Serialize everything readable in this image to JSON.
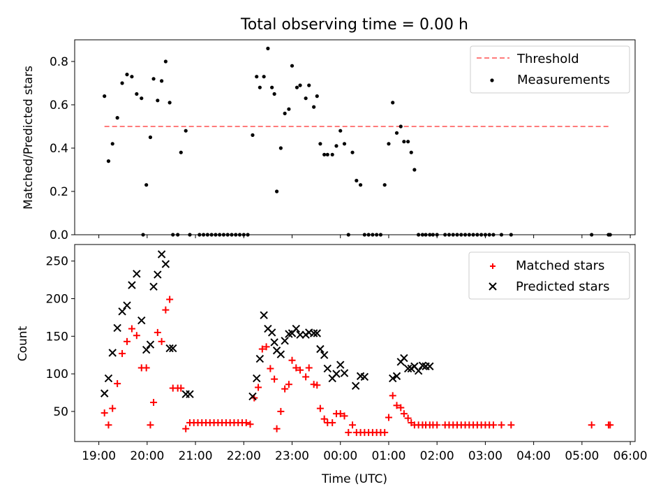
{
  "chart_data": [
    {
      "type": "scatter",
      "title": "Total observing time = 0.00 h",
      "ylabel": "Matched/Predicted stars",
      "ylim": [
        0,
        0.9
      ],
      "yticks": [
        "0.0",
        "0.2",
        "0.4",
        "0.6",
        "0.8"
      ],
      "xlim_hours": [
        18.5,
        30.1
      ],
      "threshold": {
        "name": "Threshold",
        "value": 0.5,
        "x_range": [
          "19:07",
          "29:35"
        ],
        "color": "#ff7b7b"
      },
      "legend": {
        "position": "top-right",
        "entries": [
          "Threshold",
          "Measurements"
        ]
      },
      "series": [
        {
          "name": "Measurements",
          "color": "#000000",
          "x": [
            "19:07",
            "19:12",
            "19:17",
            "19:23",
            "19:29",
            "19:35",
            "19:41",
            "19:47",
            "19:53",
            "19:55",
            "19:59",
            "20:04",
            "20:08",
            "20:13",
            "20:18",
            "20:23",
            "20:28",
            "20:32",
            "20:38",
            "20:42",
            "20:48",
            "20:53",
            "21:05",
            "21:10",
            "21:15",
            "21:20",
            "21:25",
            "21:30",
            "21:35",
            "21:40",
            "21:45",
            "21:50",
            "21:55",
            "22:00",
            "22:05",
            "22:11",
            "22:16",
            "22:20",
            "22:25",
            "22:30",
            "22:35",
            "22:38",
            "22:41",
            "22:46",
            "22:51",
            "22:56",
            "23:00",
            "23:06",
            "23:10",
            "23:17",
            "23:21",
            "23:27",
            "23:31",
            "23:35",
            "23:40",
            "23:44",
            "23:50",
            "23:55",
            "24:00",
            "24:05",
            "24:10",
            "24:15",
            "24:20",
            "24:25",
            "24:30",
            "24:35",
            "24:40",
            "24:45",
            "24:50",
            "24:55",
            "25:00",
            "25:05",
            "25:10",
            "25:15",
            "25:19",
            "25:24",
            "25:28",
            "25:32",
            "25:37",
            "25:42",
            "25:46",
            "25:51",
            "25:55",
            "26:00",
            "26:10",
            "26:15",
            "26:20",
            "26:25",
            "26:30",
            "26:35",
            "26:40",
            "26:45",
            "26:50",
            "26:55",
            "27:00",
            "27:05",
            "27:10",
            "27:20",
            "27:32",
            "29:12",
            "29:33",
            "29:35"
          ],
          "y": [
            0.64,
            0.34,
            0.42,
            0.54,
            0.7,
            0.74,
            0.73,
            0.65,
            0.63,
            0.0,
            0.23,
            0.45,
            0.72,
            0.62,
            0.71,
            0.8,
            0.61,
            0.0,
            0.0,
            0.38,
            0.48,
            0.0,
            0.0,
            0.0,
            0.0,
            0.0,
            0.0,
            0.0,
            0.0,
            0.0,
            0.0,
            0.0,
            0.0,
            0.0,
            0.0,
            0.46,
            0.73,
            0.68,
            0.73,
            0.86,
            0.68,
            0.65,
            0.2,
            0.4,
            0.56,
            0.58,
            0.78,
            0.68,
            0.69,
            0.63,
            0.69,
            0.59,
            0.64,
            0.42,
            0.37,
            0.37,
            0.37,
            0.41,
            0.48,
            0.42,
            0.0,
            0.38,
            0.25,
            0.23,
            0.0,
            0.0,
            0.0,
            0.0,
            0.0,
            0.23,
            0.42,
            0.61,
            0.47,
            0.5,
            0.43,
            0.43,
            0.38,
            0.3,
            0.0,
            0.0,
            0.0,
            0.0,
            0.0,
            0.0,
            0.0,
            0.0,
            0.0,
            0.0,
            0.0,
            0.0,
            0.0,
            0.0,
            0.0,
            0.0,
            0.0,
            0.0,
            0.0,
            0.0,
            0.0,
            0.0,
            0.0,
            0.0
          ]
        }
      ]
    },
    {
      "type": "scatter",
      "xlabel": "Time (UTC)",
      "ylabel": "Count",
      "ylim": [
        10,
        272
      ],
      "yticks": [
        "50",
        "100",
        "150",
        "200",
        "250"
      ],
      "xticks": [
        "19:00",
        "20:00",
        "21:00",
        "22:00",
        "23:00",
        "00:00",
        "01:00",
        "02:00",
        "03:00",
        "04:00",
        "05:00",
        "06:00"
      ],
      "legend": {
        "position": "top-right",
        "entries": [
          "Matched stars",
          "Predicted stars"
        ]
      },
      "series": [
        {
          "name": "Matched stars",
          "marker": "plus",
          "color": "#ff0000",
          "x": [
            "19:07",
            "19:12",
            "19:17",
            "19:23",
            "19:29",
            "19:35",
            "19:41",
            "19:47",
            "19:53",
            "19:59",
            "20:04",
            "20:08",
            "20:13",
            "20:18",
            "20:23",
            "20:28",
            "20:32",
            "20:38",
            "20:42",
            "20:48",
            "20:53",
            "20:58",
            "21:03",
            "21:08",
            "21:13",
            "21:18",
            "21:23",
            "21:28",
            "21:33",
            "21:38",
            "21:43",
            "21:48",
            "21:53",
            "21:58",
            "22:03",
            "22:08",
            "22:13",
            "22:18",
            "22:23",
            "22:28",
            "22:33",
            "22:38",
            "22:41",
            "22:46",
            "22:51",
            "22:56",
            "23:00",
            "23:05",
            "23:10",
            "23:17",
            "23:21",
            "23:27",
            "23:31",
            "23:35",
            "23:40",
            "23:44",
            "23:50",
            "23:55",
            "24:00",
            "24:05",
            "24:10",
            "24:15",
            "24:20",
            "24:25",
            "24:30",
            "24:35",
            "24:40",
            "24:45",
            "24:50",
            "24:55",
            "25:00",
            "25:05",
            "25:10",
            "25:15",
            "25:19",
            "25:24",
            "25:28",
            "25:32",
            "25:37",
            "25:42",
            "25:46",
            "25:51",
            "25:55",
            "26:00",
            "26:10",
            "26:15",
            "26:20",
            "26:25",
            "26:30",
            "26:35",
            "26:40",
            "26:45",
            "26:50",
            "26:55",
            "27:00",
            "27:05",
            "27:10",
            "27:20",
            "27:32",
            "29:12",
            "29:33",
            "29:35"
          ],
          "y": [
            48,
            32,
            54,
            87,
            127,
            143,
            160,
            151,
            108,
            108,
            32,
            62,
            155,
            143,
            185,
            199,
            81,
            81,
            81,
            27,
            35,
            35,
            35,
            35,
            35,
            35,
            35,
            35,
            35,
            35,
            35,
            35,
            35,
            35,
            35,
            33,
            68,
            82,
            133,
            136,
            107,
            93,
            27,
            50,
            80,
            86,
            118,
            108,
            105,
            96,
            108,
            86,
            85,
            54,
            40,
            35,
            35,
            47,
            47,
            44,
            22,
            32,
            22,
            22,
            22,
            22,
            22,
            22,
            22,
            22,
            42,
            71,
            58,
            55,
            47,
            41,
            35,
            32,
            32,
            32,
            32,
            32,
            32,
            32,
            32,
            32,
            32,
            32,
            32,
            32,
            32,
            32,
            32,
            32,
            32,
            32,
            32,
            32,
            32,
            32,
            32,
            32
          ]
        },
        {
          "name": "Predicted stars",
          "marker": "x",
          "color": "#000000",
          "x": [
            "19:07",
            "19:12",
            "19:17",
            "19:23",
            "19:29",
            "19:35",
            "19:41",
            "19:47",
            "19:53",
            "19:59",
            "20:04",
            "20:08",
            "20:13",
            "20:18",
            "20:23",
            "20:28",
            "20:32",
            "20:48",
            "20:53",
            "22:11",
            "22:16",
            "22:20",
            "22:25",
            "22:30",
            "22:35",
            "22:38",
            "22:41",
            "22:46",
            "22:51",
            "22:56",
            "23:00",
            "23:05",
            "23:10",
            "23:17",
            "23:21",
            "23:27",
            "23:31",
            "23:35",
            "23:40",
            "23:44",
            "23:50",
            "23:55",
            "24:00",
            "24:05",
            "24:19",
            "24:25",
            "24:30",
            "25:05",
            "25:10",
            "25:15",
            "25:19",
            "25:24",
            "25:28",
            "25:32",
            "25:37",
            "25:42",
            "25:46",
            "25:51"
          ],
          "y": [
            74,
            94,
            128,
            161,
            183,
            191,
            218,
            233,
            171,
            132,
            139,
            216,
            232,
            259,
            246,
            134,
            134,
            73,
            73,
            70,
            94,
            120,
            178,
            160,
            155,
            142,
            131,
            126,
            144,
            153,
            154,
            160,
            152,
            152,
            155,
            154,
            154,
            133,
            125,
            107,
            94,
            100,
            112,
            101,
            84,
            97,
            96,
            94,
            97,
            116,
            121,
            107,
            107,
            110,
            104,
            111,
            110,
            110
          ]
        }
      ]
    }
  ]
}
